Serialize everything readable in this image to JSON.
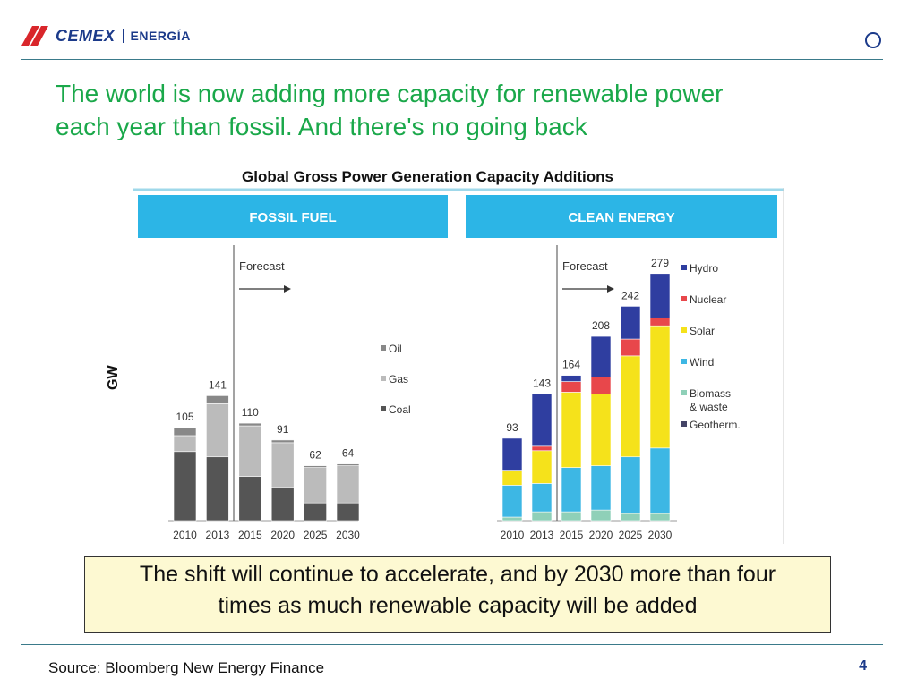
{
  "brand": {
    "name": "CEMEX",
    "division": "ENERGÍA",
    "colors": {
      "blue": "#1b3a8a",
      "red": "#d9262b",
      "green": "#1aa84a"
    }
  },
  "slide": {
    "title_line1": "The world is now adding more capacity for renewable power",
    "title_line2": "each year than fossil. And there's no going back",
    "callout_line1": "The shift will continue to accelerate, and by 2030 more than four",
    "callout_line2": "times as much renewable capacity will be added",
    "source": "Source: Bloomberg New Energy Finance",
    "page_number": "4"
  },
  "chart_data": {
    "title": "Global Gross Power Generation Capacity Additions",
    "ylabel": "GW",
    "type": "bar",
    "stacked": true,
    "forecast_label": "Forecast",
    "panels": [
      {
        "name": "FOSSIL FUEL",
        "categories": [
          "2010",
          "2013",
          "2015",
          "2020",
          "2025",
          "2030"
        ],
        "totals": [
          105,
          141,
          110,
          91,
          62,
          64
        ],
        "series": [
          {
            "name": "Coal",
            "color": "#555555",
            "values": [
              78,
              72,
              50,
              38,
              20,
              20
            ]
          },
          {
            "name": "Gas",
            "color": "#bbbbbb",
            "values": [
              18,
              60,
              57,
              50,
              40,
              42
            ]
          },
          {
            "name": "Oil",
            "color": "#888888",
            "values": [
              9,
              9,
              3,
              3,
              2,
              2
            ]
          }
        ],
        "legend_order": [
          "Oil",
          "Gas",
          "Coal"
        ],
        "forecast_starts_after": "2013"
      },
      {
        "name": "CLEAN ENERGY",
        "categories": [
          "2010",
          "2013",
          "2015",
          "2020",
          "2025",
          "2030"
        ],
        "totals": [
          93,
          143,
          164,
          208,
          242,
          279
        ],
        "series": [
          {
            "name": "Biomass & waste",
            "color": "#8fd0b8",
            "values": [
              4,
              10,
              10,
              12,
              8,
              8
            ]
          },
          {
            "name": "Wind",
            "color": "#3db7e4",
            "values": [
              36,
              32,
              50,
              50,
              64,
              74
            ]
          },
          {
            "name": "Solar",
            "color": "#f5e21b",
            "values": [
              17,
              37,
              85,
              81,
              114,
              138
            ]
          },
          {
            "name": "Nuclear",
            "color": "#e8474b",
            "values": [
              0,
              5,
              12,
              19,
              19,
              9
            ]
          },
          {
            "name": "Hydro",
            "color": "#2f3ea0",
            "values": [
              36,
              59,
              7,
              46,
              37,
              50
            ]
          }
        ],
        "legend_order": [
          "Hydro",
          "Nuclear",
          "Solar",
          "Wind",
          "Biomass & waste",
          "Geotherm."
        ],
        "legend_colors": {
          "Geotherm.": "#444466"
        },
        "forecast_starts_after": "2013"
      }
    ]
  }
}
